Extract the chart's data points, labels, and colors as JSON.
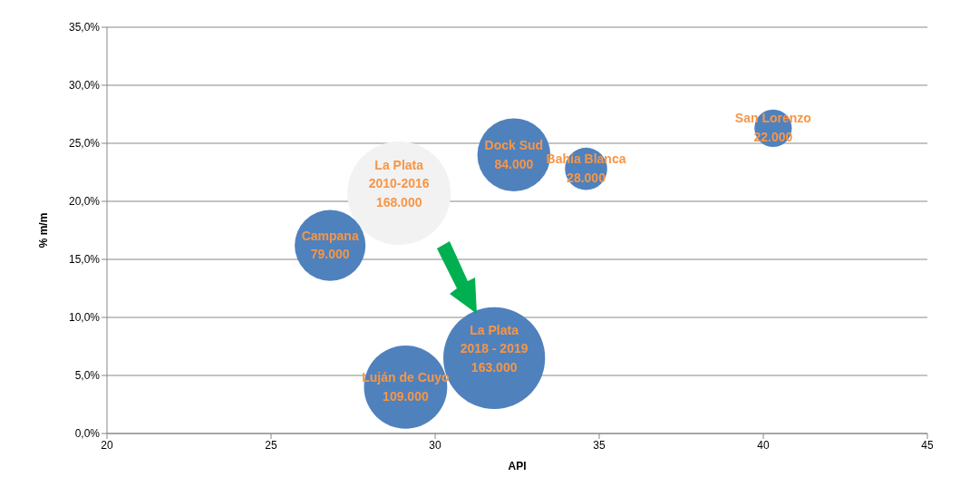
{
  "chart_data": {
    "type": "bubble",
    "xlabel": "API",
    "ylabel": "% m/m",
    "xlim": [
      20,
      45
    ],
    "xticks": [
      20,
      25,
      30,
      35,
      40,
      45
    ],
    "ylim": [
      0,
      35
    ],
    "yticks": [
      {
        "value": 0,
        "label": "0,0%"
      },
      {
        "value": 5,
        "label": "5,0%"
      },
      {
        "value": 10,
        "label": "10,0%"
      },
      {
        "value": 15,
        "label": "15,0%"
      },
      {
        "value": 20,
        "label": "20,0%"
      },
      {
        "value": 25,
        "label": "25,0%"
      },
      {
        "value": 30,
        "label": "30,0%"
      },
      {
        "value": 35,
        "label": "35,0%"
      }
    ],
    "grid": "y",
    "legend": false,
    "series": [
      {
        "name": "La Plata\n2010-2016",
        "color": "#f2f2f2",
        "x": [
          28.9
        ],
        "values": [
          20.7
        ],
        "sizes": [
          1
        ]
      },
      {
        "name": "San Lorenzo",
        "color": "#4f81bd",
        "x": [
          40.3
        ],
        "values": [
          26.3
        ],
        "sizes": [
          0.131
        ]
      },
      {
        "name": "Dock Sud",
        "color": "#4f81bd",
        "x": [
          32.4
        ],
        "values": [
          24.0
        ],
        "sizes": [
          0.5
        ]
      },
      {
        "name": "Bahia Blanca",
        "color": "#4f81bd",
        "x": [
          34.6
        ],
        "values": [
          22.8
        ],
        "sizes": [
          0.167
        ]
      },
      {
        "name": "Campana",
        "color": "#4f81bd",
        "x": [
          26.8
        ],
        "values": [
          16.2
        ],
        "sizes": [
          0.47
        ]
      },
      {
        "name": "Luján de Cuyo",
        "color": "#4f81bd",
        "x": [
          29.1
        ],
        "values": [
          4.0
        ],
        "sizes": [
          0.649
        ]
      },
      {
        "name": "La Plata\n2018 - 2019",
        "color": "#4f81bd",
        "x": [
          31.8
        ],
        "values": [
          6.5
        ],
        "sizes": [
          0.97
        ]
      }
    ],
    "annotations": [
      {
        "text": "168.000",
        "x": 28.9,
        "y": 20.7
      },
      {
        "text": "22.000",
        "x": 40.3,
        "y": 26.3
      },
      {
        "text": "84.000",
        "x": 32.4,
        "y": 24.0
      },
      {
        "text": "28.000",
        "x": 34.6,
        "y": 22.8
      },
      {
        "text": "79.000",
        "x": 26.8,
        "y": 16.2
      },
      {
        "text": "109.000",
        "x": 29.1,
        "y": 4.0
      },
      {
        "text": "163.000",
        "x": 31.8,
        "y": 6.5
      }
    ]
  }
}
